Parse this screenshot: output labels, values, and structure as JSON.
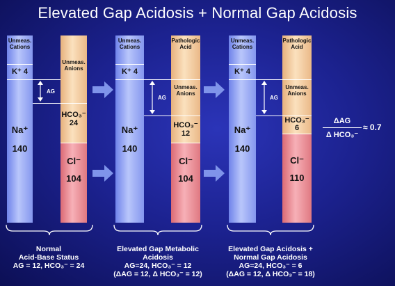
{
  "title": "Elevated Gap Acidosis + Normal Gap Acidosis",
  "labels": {
    "unmeasured_cations": "Unmeas. Cations",
    "unmeasured_anions": "Unmeas. Anions",
    "pathologic_acid": "Pathologic Acid",
    "potassium": "K⁺ 4",
    "sodium_symbol": "Na⁺",
    "chloride_symbol": "Cl⁻",
    "bicarb_symbol": "HCO₃⁻",
    "ag": "AG"
  },
  "panels": [
    {
      "sodium": "140",
      "bicarb": "24",
      "chloride": "104",
      "caption": [
        "Normal",
        "Acid-Base Status",
        "AG = 12, HCO₃⁻ = 24"
      ]
    },
    {
      "sodium": "140",
      "bicarb": "12",
      "chloride": "104",
      "caption": [
        "Elevated Gap Metabolic",
        "Acidosis",
        "AG=24, HCO₃⁻ = 12",
        "(ΔAG = 12, Δ HCO₃⁻ = 12)"
      ]
    },
    {
      "sodium": "140",
      "bicarb": "6",
      "chloride": "110",
      "caption": [
        "Elevated Gap Acidosis +",
        "Normal Gap Acidosis",
        "AG=24, HCO₃⁻ = 6",
        "(ΔAG = 12, Δ HCO₃⁻ = 18)"
      ]
    }
  ],
  "ratio": {
    "numerator": "ΔAG",
    "denominator": "Δ HCO₃⁻",
    "value": "≈  0.7"
  }
}
